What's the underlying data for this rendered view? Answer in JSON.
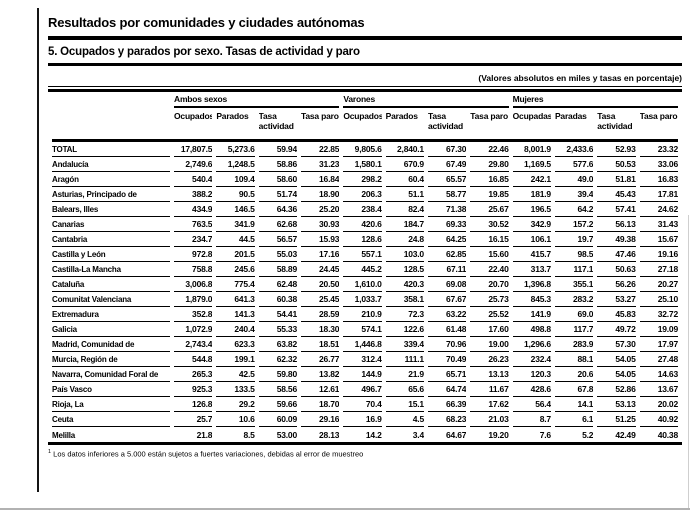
{
  "header": {
    "section_title": "Resultados por comunidades y ciudades autónomas",
    "table_title": "5. Ocupados y parados por sexo. Tasas de actividad y paro",
    "units_note": "(Valores absolutos en miles y tasas en porcentaje)"
  },
  "chart_data": {
    "type": "table",
    "title": "5. Ocupados y parados por sexo. Tasas de actividad y paro",
    "groups": [
      {
        "label": "Ambos sexos",
        "columns": [
          "Ocupados",
          "Parados",
          "Tasa actividad",
          "Tasa paro"
        ]
      },
      {
        "label": "Varones",
        "columns": [
          "Ocupados",
          "Parados",
          "Tasa actividad",
          "Tasa paro"
        ]
      },
      {
        "label": "Mujeres",
        "columns": [
          "Ocupadas",
          "Paradas",
          "Tasa actividad",
          "Tasa paro"
        ]
      }
    ],
    "rows": [
      {
        "label": "TOTAL",
        "values": [
          "17,807.5",
          "5,273.6",
          "59.94",
          "22.85",
          "9,805.6",
          "2,840.1",
          "67.30",
          "22.46",
          "8,001.9",
          "2,433.6",
          "52.93",
          "23.32"
        ]
      },
      {
        "label": "Andalucía",
        "values": [
          "2,749.6",
          "1,248.5",
          "58.86",
          "31.23",
          "1,580.1",
          "670.9",
          "67.49",
          "29.80",
          "1,169.5",
          "577.6",
          "50.53",
          "33.06"
        ]
      },
      {
        "label": "Aragón",
        "values": [
          "540.4",
          "109.4",
          "58.60",
          "16.84",
          "298.2",
          "60.4",
          "65.57",
          "16.85",
          "242.1",
          "49.0",
          "51.81",
          "16.83"
        ]
      },
      {
        "label": "Asturias, Principado de",
        "values": [
          "388.2",
          "90.5",
          "51.74",
          "18.90",
          "206.3",
          "51.1",
          "58.77",
          "19.85",
          "181.9",
          "39.4",
          "45.43",
          "17.81"
        ]
      },
      {
        "label": "Balears, Illes",
        "values": [
          "434.9",
          "146.5",
          "64.36",
          "25.20",
          "238.4",
          "82.4",
          "71.38",
          "25.67",
          "196.5",
          "64.2",
          "57.41",
          "24.62"
        ]
      },
      {
        "label": "Canarias",
        "values": [
          "763.5",
          "341.9",
          "62.68",
          "30.93",
          "420.6",
          "184.7",
          "69.33",
          "30.52",
          "342.9",
          "157.2",
          "56.13",
          "31.43"
        ]
      },
      {
        "label": "Cantabria",
        "values": [
          "234.7",
          "44.5",
          "56.57",
          "15.93",
          "128.6",
          "24.8",
          "64.25",
          "16.15",
          "106.1",
          "19.7",
          "49.38",
          "15.67"
        ]
      },
      {
        "label": "Castilla y León",
        "values": [
          "972.8",
          "201.5",
          "55.03",
          "17.16",
          "557.1",
          "103.0",
          "62.85",
          "15.60",
          "415.7",
          "98.5",
          "47.46",
          "19.16"
        ]
      },
      {
        "label": "Castilla-La Mancha",
        "values": [
          "758.8",
          "245.6",
          "58.89",
          "24.45",
          "445.2",
          "128.5",
          "67.11",
          "22.40",
          "313.7",
          "117.1",
          "50.63",
          "27.18"
        ]
      },
      {
        "label": "Cataluña",
        "values": [
          "3,006.8",
          "775.4",
          "62.48",
          "20.50",
          "1,610.0",
          "420.3",
          "69.08",
          "20.70",
          "1,396.8",
          "355.1",
          "56.26",
          "20.27"
        ]
      },
      {
        "label": "Comunitat Valenciana",
        "values": [
          "1,879.0",
          "641.3",
          "60.38",
          "25.45",
          "1,033.7",
          "358.1",
          "67.67",
          "25.73",
          "845.3",
          "283.2",
          "53.27",
          "25.10"
        ]
      },
      {
        "label": "Extremadura",
        "values": [
          "352.8",
          "141.3",
          "54.41",
          "28.59",
          "210.9",
          "72.3",
          "63.22",
          "25.52",
          "141.9",
          "69.0",
          "45.83",
          "32.72"
        ]
      },
      {
        "label": "Galicia",
        "values": [
          "1,072.9",
          "240.4",
          "55.33",
          "18.30",
          "574.1",
          "122.6",
          "61.48",
          "17.60",
          "498.8",
          "117.7",
          "49.72",
          "19.09"
        ]
      },
      {
        "label": "Madrid, Comunidad de",
        "values": [
          "2,743.4",
          "623.3",
          "63.82",
          "18.51",
          "1,446.8",
          "339.4",
          "70.96",
          "19.00",
          "1,296.6",
          "283.9",
          "57.30",
          "17.97"
        ]
      },
      {
        "label": "Murcia, Región de",
        "values": [
          "544.8",
          "199.1",
          "62.32",
          "26.77",
          "312.4",
          "111.1",
          "70.49",
          "26.23",
          "232.4",
          "88.1",
          "54.05",
          "27.48"
        ]
      },
      {
        "label": "Navarra, Comunidad Foral de",
        "values": [
          "265.3",
          "42.5",
          "59.80",
          "13.82",
          "144.9",
          "21.9",
          "65.71",
          "13.13",
          "120.3",
          "20.6",
          "54.05",
          "14.63"
        ]
      },
      {
        "label": "País Vasco",
        "values": [
          "925.3",
          "133.5",
          "58.56",
          "12.61",
          "496.7",
          "65.6",
          "64.74",
          "11.67",
          "428.6",
          "67.8",
          "52.86",
          "13.67"
        ]
      },
      {
        "label": "Rioja, La",
        "values": [
          "126.8",
          "29.2",
          "59.66",
          "18.70",
          "70.4",
          "15.1",
          "66.39",
          "17.62",
          "56.4",
          "14.1",
          "53.13",
          "20.02"
        ]
      },
      {
        "label": "Ceuta",
        "values": [
          "25.7",
          "10.6",
          "60.09",
          "29.16",
          "16.9",
          "4.5",
          "68.23",
          "21.03",
          "8.7",
          "6.1",
          "51.25",
          "40.92"
        ]
      },
      {
        "label": "Melilla",
        "values": [
          "21.8",
          "8.5",
          "53.00",
          "28.13",
          "14.2",
          "3.4",
          "64.67",
          "19.20",
          "7.6",
          "5.2",
          "42.49",
          "40.38"
        ]
      }
    ]
  },
  "footnote": {
    "marker": "1",
    "text": "Los datos inferiores a 5.000 están sujetos a fuertes variaciones, debidas al error de muestreo"
  },
  "colors": {
    "text": "#000000",
    "rule": "#000000",
    "page_edge": "#b2b2b2"
  }
}
